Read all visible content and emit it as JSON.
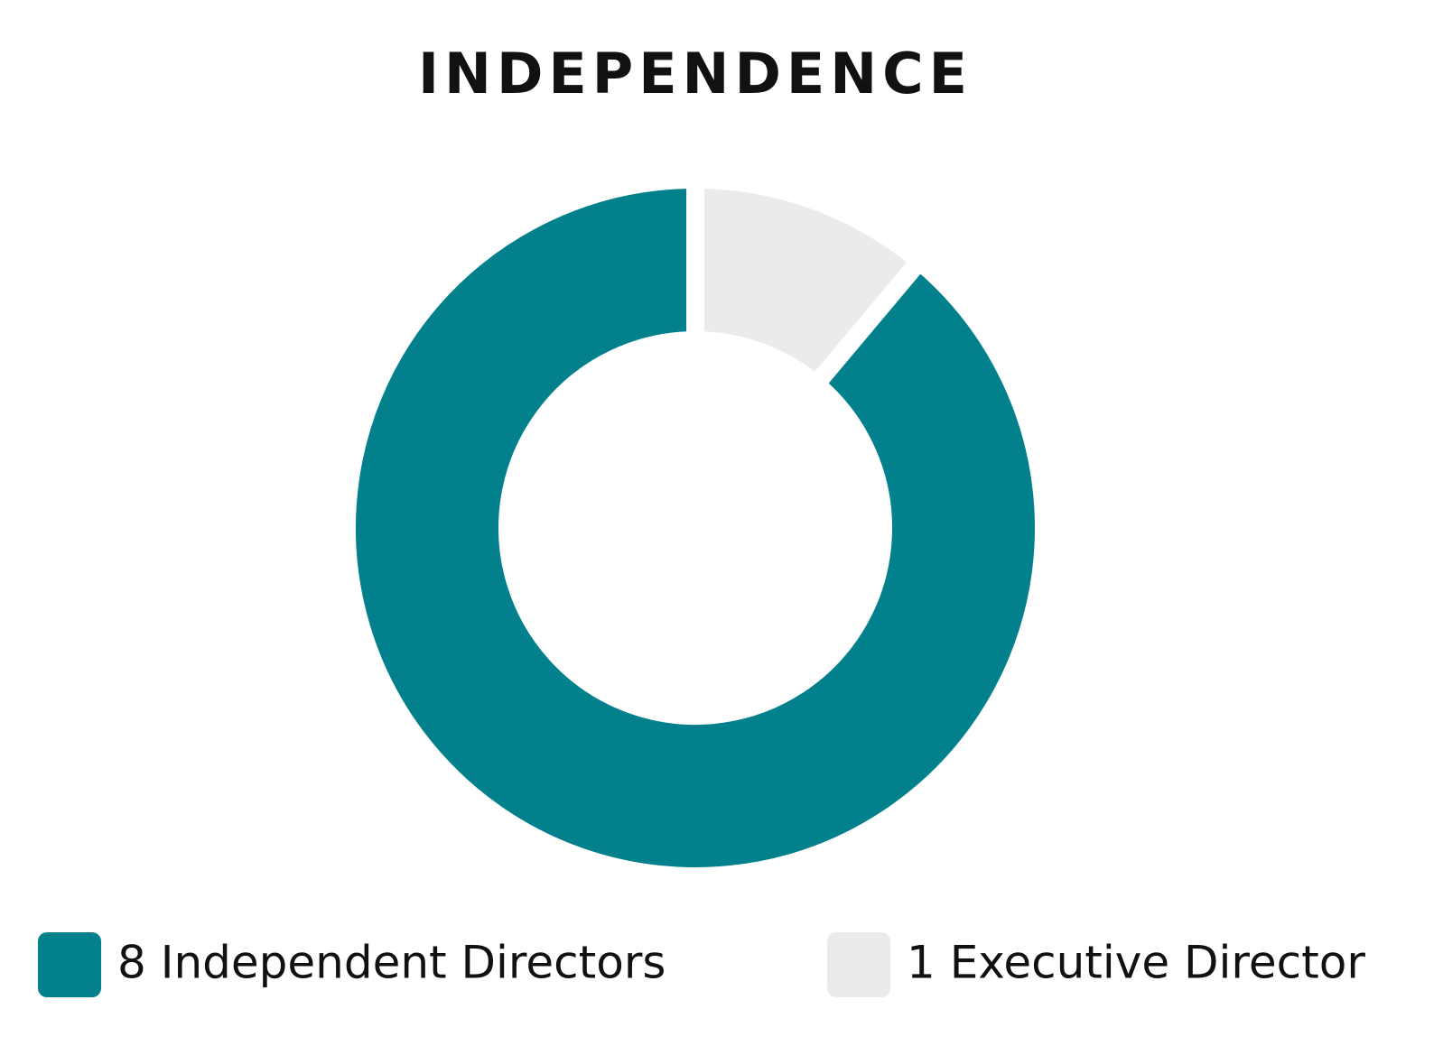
{
  "chart_data": {
    "type": "donut",
    "title": "INDEPENDENCE",
    "categories": [
      "8 Independent Directors",
      "1 Executive Director"
    ],
    "values": [
      8,
      1
    ],
    "colors": [
      "#02818d",
      "#ebebed"
    ]
  }
}
